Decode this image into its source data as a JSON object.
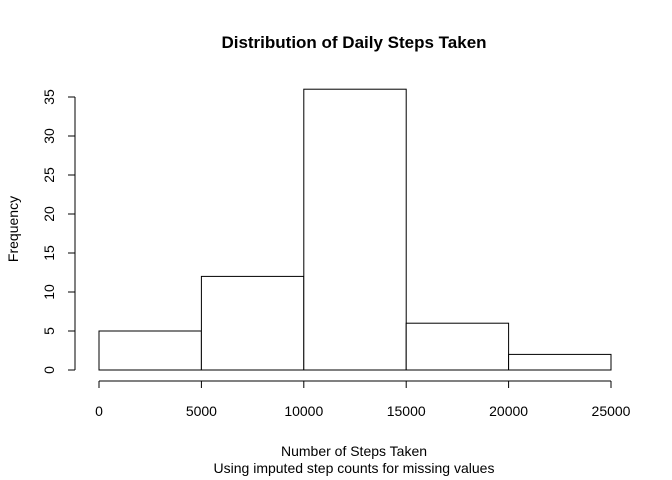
{
  "chart_data": {
    "type": "bar",
    "title": "Distribution of Daily Steps Taken",
    "xlabel": "Number of Steps Taken",
    "subtitle": "Using imputed step counts for missing values",
    "ylabel": "Frequency",
    "bins": [
      {
        "from": 0,
        "to": 5000,
        "value": 5
      },
      {
        "from": 5000,
        "to": 10000,
        "value": 12
      },
      {
        "from": 10000,
        "to": 15000,
        "value": 36
      },
      {
        "from": 15000,
        "to": 20000,
        "value": 6
      },
      {
        "from": 20000,
        "to": 25000,
        "value": 2
      }
    ],
    "xlim": [
      0,
      25000
    ],
    "ylim": [
      0,
      35
    ],
    "x_ticks": [
      "0",
      "5000",
      "10000",
      "15000",
      "20000",
      "25000"
    ],
    "y_ticks": [
      "0",
      "5",
      "10",
      "15",
      "20",
      "25",
      "30",
      "35"
    ],
    "grid": false,
    "bar_fill": "#ffffff",
    "bar_stroke": "#000000"
  }
}
